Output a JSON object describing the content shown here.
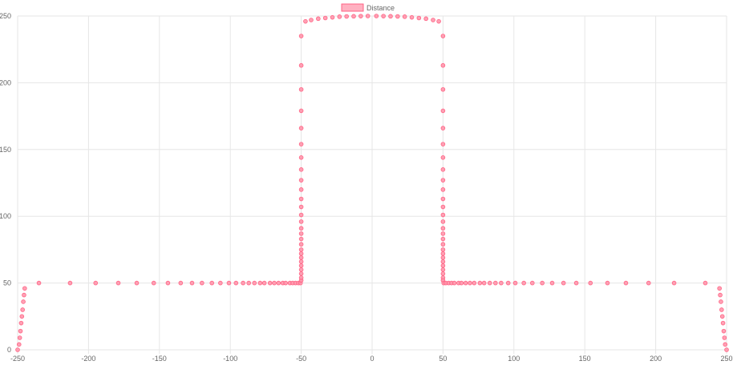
{
  "chart_data": {
    "type": "scatter",
    "legend": {
      "position": "top",
      "label": "Distance"
    },
    "colors": {
      "point_fill": "#ff8fa7",
      "point_stroke": "#ff6384",
      "legend_fill": "#ffb1c1",
      "grid": "#e6e6e6"
    },
    "xlim": [
      -250,
      250
    ],
    "ylim": [
      0,
      250
    ],
    "x_ticks": [
      "-250",
      "-200",
      "-150",
      "-100",
      "-50",
      "0",
      "50",
      "100",
      "150",
      "200",
      "250"
    ],
    "y_ticks": [
      "0",
      "50",
      "100",
      "150",
      "200",
      "250"
    ],
    "series": [
      {
        "name": "Distance",
        "points": [
          [
            -250,
            0
          ],
          [
            -249,
            4
          ],
          [
            -248.5,
            9
          ],
          [
            -248,
            14
          ],
          [
            -247.5,
            20
          ],
          [
            -247,
            25
          ],
          [
            -246.5,
            30
          ],
          [
            -246,
            36
          ],
          [
            -245.5,
            41
          ],
          [
            -245,
            46
          ],
          [
            -235,
            50
          ],
          [
            -213,
            50
          ],
          [
            -195,
            50
          ],
          [
            -179,
            50
          ],
          [
            -166,
            50
          ],
          [
            -154,
            50
          ],
          [
            -144,
            50
          ],
          [
            -135,
            50
          ],
          [
            -127,
            50
          ],
          [
            -120,
            50
          ],
          [
            -113,
            50
          ],
          [
            -107,
            50
          ],
          [
            -101,
            50
          ],
          [
            -96,
            50
          ],
          [
            -91,
            50
          ],
          [
            -87,
            50
          ],
          [
            -83,
            50
          ],
          [
            -79,
            50
          ],
          [
            -76,
            50
          ],
          [
            -72,
            50
          ],
          [
            -69,
            50
          ],
          [
            -66,
            50
          ],
          [
            -63,
            50
          ],
          [
            -61,
            50
          ],
          [
            -58,
            50
          ],
          [
            -56,
            50
          ],
          [
            -54,
            50
          ],
          [
            -52,
            50
          ],
          [
            -50.5,
            50
          ],
          [
            -50,
            52
          ],
          [
            -50,
            54
          ],
          [
            -50,
            57
          ],
          [
            -50,
            60
          ],
          [
            -50,
            63
          ],
          [
            -50,
            66
          ],
          [
            -50,
            69
          ],
          [
            -50,
            72
          ],
          [
            -50,
            75
          ],
          [
            -50,
            79
          ],
          [
            -50,
            83
          ],
          [
            -50,
            87
          ],
          [
            -50,
            91
          ],
          [
            -50,
            96
          ],
          [
            -50,
            101
          ],
          [
            -50,
            107
          ],
          [
            -50,
            113
          ],
          [
            -50,
            120
          ],
          [
            -50,
            127
          ],
          [
            -50,
            135
          ],
          [
            -50,
            144
          ],
          [
            -50,
            154
          ],
          [
            -50,
            166
          ],
          [
            -50,
            179
          ],
          [
            -50,
            195
          ],
          [
            -50,
            213
          ],
          [
            -50,
            235
          ],
          [
            -47,
            246
          ],
          [
            -43,
            247
          ],
          [
            -38,
            248
          ],
          [
            -33,
            248.5
          ],
          [
            -28,
            249
          ],
          [
            -23,
            249.5
          ],
          [
            -18,
            249.7
          ],
          [
            -13,
            249.8
          ],
          [
            -8,
            249.9
          ],
          [
            -3,
            250
          ],
          [
            3,
            250
          ],
          [
            8,
            249.9
          ],
          [
            13,
            249.8
          ],
          [
            18,
            249.7
          ],
          [
            23,
            249.5
          ],
          [
            28,
            249
          ],
          [
            33,
            248.5
          ],
          [
            38,
            248
          ],
          [
            43,
            247
          ],
          [
            47,
            246
          ],
          [
            50,
            235
          ],
          [
            50,
            213
          ],
          [
            50,
            195
          ],
          [
            50,
            179
          ],
          [
            50,
            166
          ],
          [
            50,
            154
          ],
          [
            50,
            144
          ],
          [
            50,
            135
          ],
          [
            50,
            127
          ],
          [
            50,
            120
          ],
          [
            50,
            113
          ],
          [
            50,
            107
          ],
          [
            50,
            101
          ],
          [
            50,
            96
          ],
          [
            50,
            91
          ],
          [
            50,
            87
          ],
          [
            50,
            83
          ],
          [
            50,
            79
          ],
          [
            50,
            75
          ],
          [
            50,
            72
          ],
          [
            50,
            69
          ],
          [
            50,
            66
          ],
          [
            50,
            63
          ],
          [
            50,
            60
          ],
          [
            50,
            57
          ],
          [
            50,
            54
          ],
          [
            50,
            52
          ],
          [
            50.5,
            50
          ],
          [
            52,
            50
          ],
          [
            54,
            50
          ],
          [
            56,
            50
          ],
          [
            58,
            50
          ],
          [
            61,
            50
          ],
          [
            63,
            50
          ],
          [
            66,
            50
          ],
          [
            69,
            50
          ],
          [
            72,
            50
          ],
          [
            76,
            50
          ],
          [
            79,
            50
          ],
          [
            83,
            50
          ],
          [
            87,
            50
          ],
          [
            91,
            50
          ],
          [
            96,
            50
          ],
          [
            101,
            50
          ],
          [
            107,
            50
          ],
          [
            113,
            50
          ],
          [
            120,
            50
          ],
          [
            127,
            50
          ],
          [
            135,
            50
          ],
          [
            144,
            50
          ],
          [
            154,
            50
          ],
          [
            166,
            50
          ],
          [
            179,
            50
          ],
          [
            195,
            50
          ],
          [
            213,
            50
          ],
          [
            235,
            50
          ],
          [
            245,
            46
          ],
          [
            245.5,
            41
          ],
          [
            246,
            36
          ],
          [
            246.5,
            30
          ],
          [
            247,
            25
          ],
          [
            247.5,
            20
          ],
          [
            248,
            14
          ],
          [
            248.5,
            9
          ],
          [
            249,
            4
          ],
          [
            250,
            0
          ]
        ]
      }
    ]
  }
}
